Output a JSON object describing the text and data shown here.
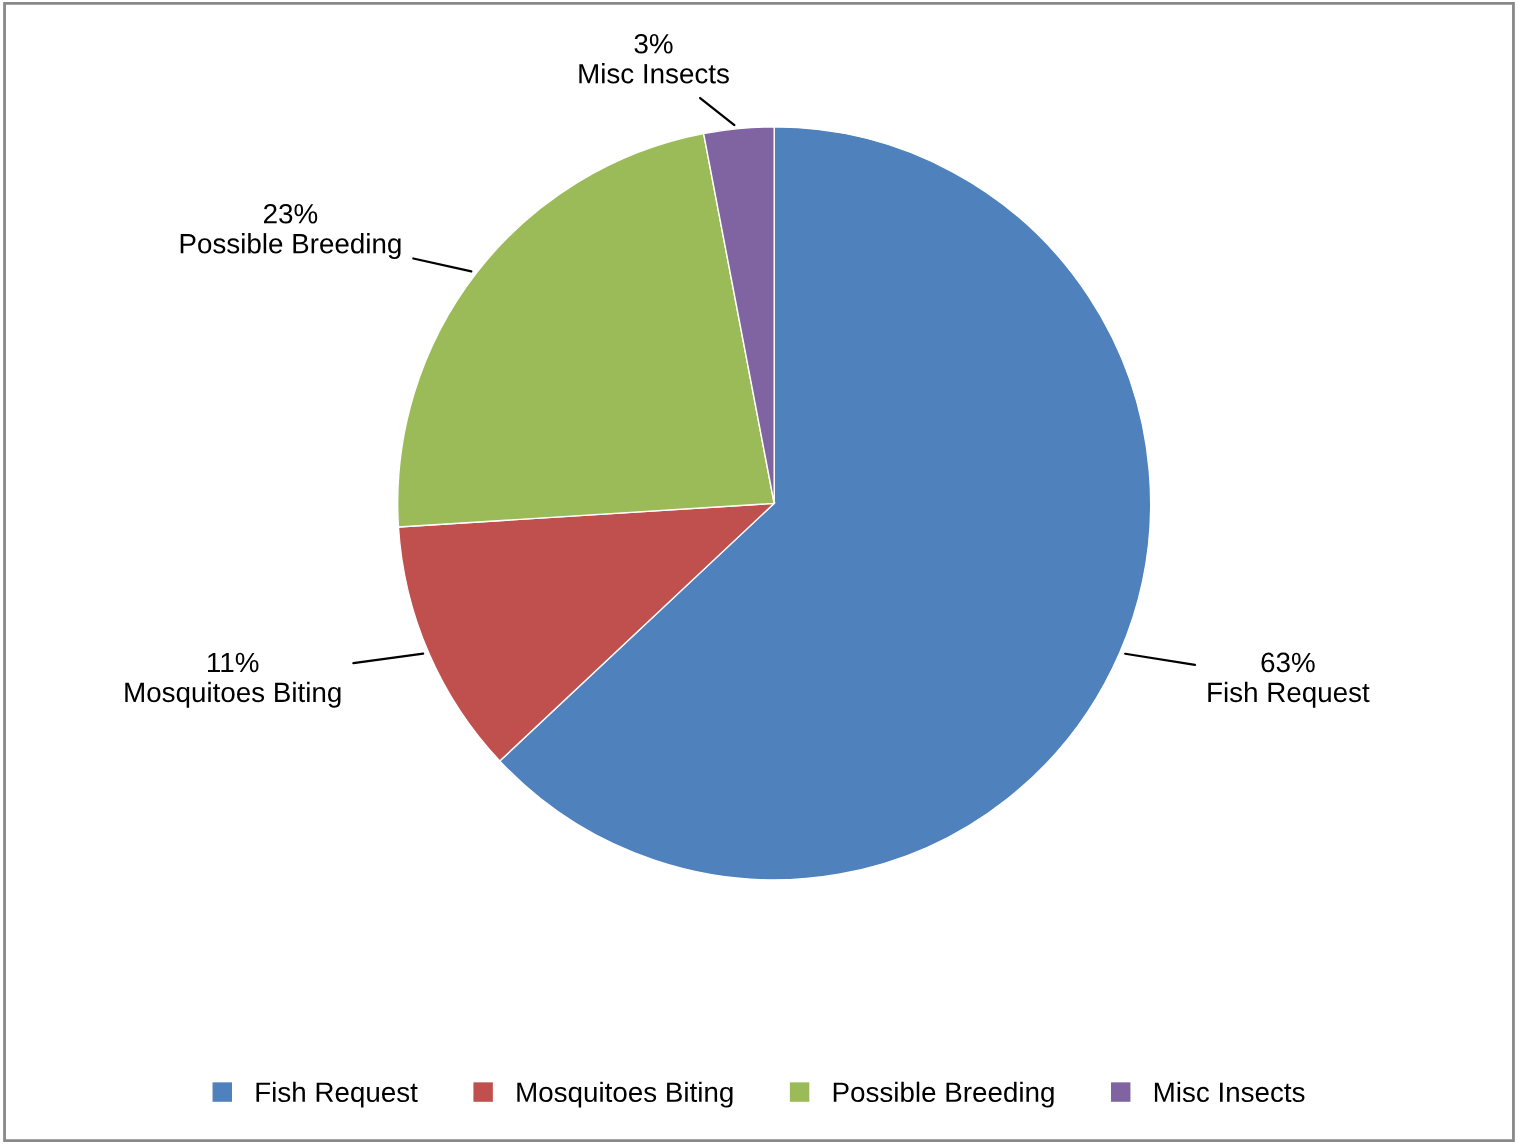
{
  "chart_data": {
    "type": "pie",
    "categories": [
      "Fish Request",
      "Mosquitoes Biting",
      "Possible Breeding",
      "Misc Insects"
    ],
    "values": [
      63,
      11,
      23,
      3
    ],
    "value_labels": [
      "63%",
      "11%",
      "23%",
      "3%"
    ],
    "colors": [
      "#4f81bd",
      "#c0504d",
      "#9bbb59",
      "#8064a2"
    ],
    "legend": "bottom"
  }
}
